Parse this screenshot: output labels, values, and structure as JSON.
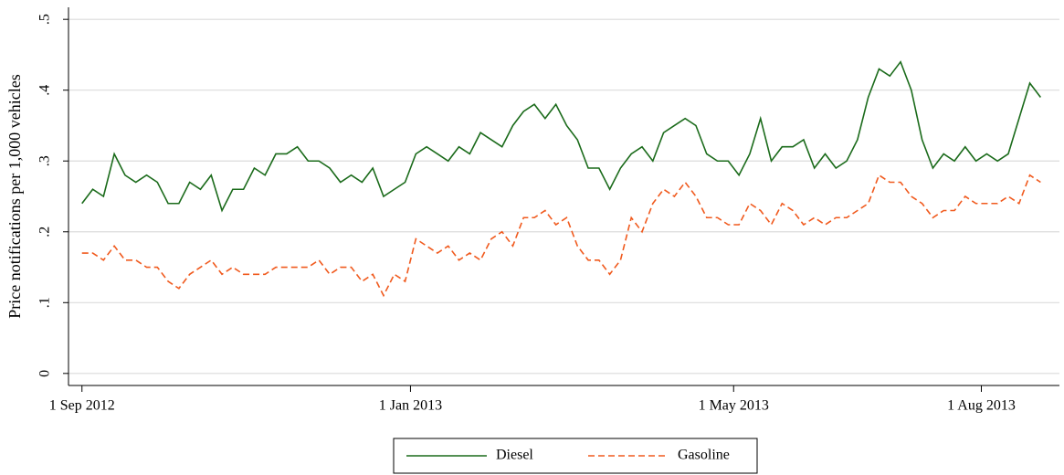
{
  "chart_data": {
    "type": "line",
    "y_label": "Price notifications per 1,000 vehicles",
    "x": [
      "2012-09-01",
      "2012-09-05",
      "2012-09-09",
      "2012-09-13",
      "2012-09-17",
      "2012-09-21",
      "2012-09-25",
      "2012-09-29",
      "2012-10-03",
      "2012-10-07",
      "2012-10-11",
      "2012-10-15",
      "2012-10-19",
      "2012-10-23",
      "2012-10-27",
      "2012-10-31",
      "2012-11-04",
      "2012-11-08",
      "2012-11-12",
      "2012-11-16",
      "2012-11-20",
      "2012-11-24",
      "2012-11-28",
      "2012-12-02",
      "2012-12-06",
      "2012-12-10",
      "2012-12-14",
      "2012-12-18",
      "2012-12-22",
      "2012-12-26",
      "2012-12-30",
      "2013-01-03",
      "2013-01-07",
      "2013-01-11",
      "2013-01-15",
      "2013-01-19",
      "2013-01-23",
      "2013-01-27",
      "2013-01-31",
      "2013-02-04",
      "2013-02-08",
      "2013-02-12",
      "2013-02-16",
      "2013-02-20",
      "2013-02-24",
      "2013-02-28",
      "2013-03-04",
      "2013-03-08",
      "2013-03-12",
      "2013-03-16",
      "2013-03-20",
      "2013-03-24",
      "2013-03-28",
      "2013-04-01",
      "2013-04-05",
      "2013-04-09",
      "2013-04-13",
      "2013-04-17",
      "2013-04-21",
      "2013-04-25",
      "2013-04-29",
      "2013-05-03",
      "2013-05-07",
      "2013-05-11",
      "2013-05-15",
      "2013-05-19",
      "2013-05-23",
      "2013-05-27",
      "2013-05-31",
      "2013-06-04",
      "2013-06-08",
      "2013-06-12",
      "2013-06-16",
      "2013-06-20",
      "2013-06-24",
      "2013-06-28",
      "2013-07-02",
      "2013-07-06",
      "2013-07-10",
      "2013-07-14",
      "2013-07-18",
      "2013-07-22",
      "2013-07-26",
      "2013-07-30",
      "2013-08-03",
      "2013-08-07",
      "2013-08-11",
      "2013-08-15",
      "2013-08-19",
      "2013-08-23"
    ],
    "series": [
      {
        "name": "Diesel",
        "color": "#1b6b1b",
        "dashed": false,
        "values": [
          0.24,
          0.26,
          0.25,
          0.31,
          0.28,
          0.27,
          0.28,
          0.27,
          0.24,
          0.24,
          0.27,
          0.26,
          0.28,
          0.23,
          0.26,
          0.26,
          0.29,
          0.28,
          0.31,
          0.31,
          0.32,
          0.3,
          0.3,
          0.29,
          0.27,
          0.28,
          0.27,
          0.29,
          0.25,
          0.26,
          0.27,
          0.31,
          0.32,
          0.31,
          0.3,
          0.32,
          0.31,
          0.34,
          0.33,
          0.32,
          0.35,
          0.37,
          0.38,
          0.36,
          0.38,
          0.35,
          0.33,
          0.29,
          0.29,
          0.26,
          0.29,
          0.31,
          0.32,
          0.3,
          0.34,
          0.35,
          0.36,
          0.35,
          0.31,
          0.3,
          0.3,
          0.28,
          0.31,
          0.36,
          0.3,
          0.32,
          0.32,
          0.33,
          0.29,
          0.31,
          0.29,
          0.3,
          0.33,
          0.39,
          0.43,
          0.42,
          0.44,
          0.4,
          0.33,
          0.29,
          0.31,
          0.3,
          0.32,
          0.3,
          0.31,
          0.3,
          0.31,
          0.36,
          0.41,
          0.39
        ]
      },
      {
        "name": "Gasoline",
        "color": "#f05a1e",
        "dashed": true,
        "values": [
          0.17,
          0.17,
          0.16,
          0.18,
          0.16,
          0.16,
          0.15,
          0.15,
          0.13,
          0.12,
          0.14,
          0.15,
          0.16,
          0.14,
          0.15,
          0.14,
          0.14,
          0.14,
          0.15,
          0.15,
          0.15,
          0.15,
          0.16,
          0.14,
          0.15,
          0.15,
          0.13,
          0.14,
          0.11,
          0.14,
          0.13,
          0.19,
          0.18,
          0.17,
          0.18,
          0.16,
          0.17,
          0.16,
          0.19,
          0.2,
          0.18,
          0.22,
          0.22,
          0.23,
          0.21,
          0.22,
          0.18,
          0.16,
          0.16,
          0.14,
          0.16,
          0.22,
          0.2,
          0.24,
          0.26,
          0.25,
          0.27,
          0.25,
          0.22,
          0.22,
          0.21,
          0.21,
          0.24,
          0.23,
          0.21,
          0.24,
          0.23,
          0.21,
          0.22,
          0.21,
          0.22,
          0.22,
          0.23,
          0.24,
          0.28,
          0.27,
          0.27,
          0.25,
          0.24,
          0.22,
          0.23,
          0.23,
          0.25,
          0.24,
          0.24,
          0.24,
          0.25,
          0.24,
          0.28,
          0.27
        ]
      }
    ],
    "xlim": [
      "2012-08-27",
      "2013-08-30"
    ],
    "xticks": [
      {
        "value": "2012-09-01",
        "label": "1 Sep 2012"
      },
      {
        "value": "2013-01-01",
        "label": "1 Jan 2013"
      },
      {
        "value": "2013-05-01",
        "label": "1 May 2013"
      },
      {
        "value": "2013-08-01",
        "label": "1 Aug 2013"
      }
    ],
    "ylim": [
      -0.017,
      0.517
    ],
    "yticks": [
      0,
      {
        "value": 0.1,
        "label": ".1"
      },
      {
        "value": 0.2,
        "label": ".2"
      },
      {
        "value": 0.3,
        "label": ".3"
      },
      {
        "value": 0.4,
        "label": ".4"
      },
      {
        "value": 0.5,
        "label": ".5"
      }
    ],
    "grid": true,
    "legend": "bottom"
  }
}
